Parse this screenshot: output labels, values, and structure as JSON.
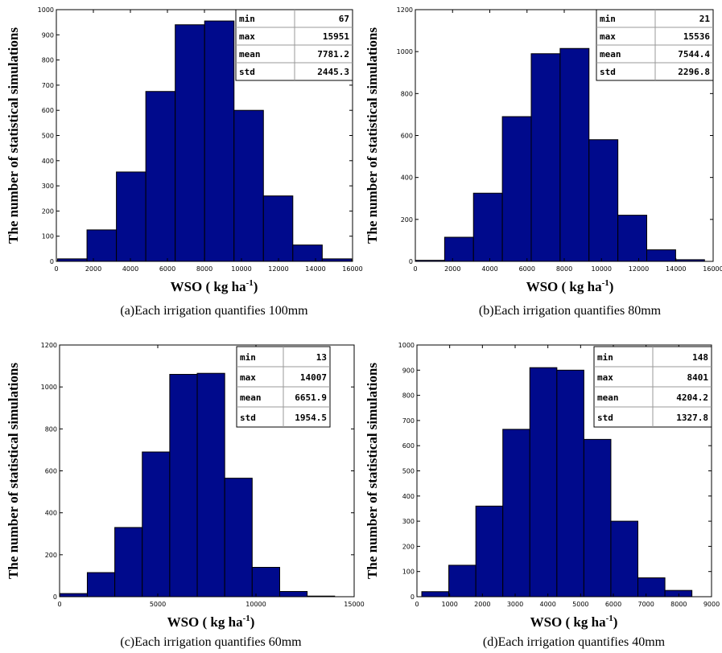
{
  "colors": {
    "bar": "#000a8c",
    "axis": "#000000"
  },
  "chart_data": [
    {
      "type": "bar",
      "caption": "(a)Each irrigation quantifies 100mm",
      "xlabel": "WSO ( kg ha",
      "xlabel_sup": "-1",
      "xlabel_end": ")",
      "ylabel": "The number of statistical simulations",
      "xlim": [
        0,
        16000
      ],
      "ylim": [
        0,
        1000
      ],
      "xticks": [
        0,
        2000,
        4000,
        6000,
        8000,
        10000,
        12000,
        14000,
        16000
      ],
      "yticks": [
        0,
        100,
        200,
        300,
        400,
        500,
        600,
        700,
        800,
        900,
        1000
      ],
      "bins": [
        {
          "x0": 67,
          "x1": 1655,
          "value": 10
        },
        {
          "x0": 1655,
          "x1": 3244,
          "value": 125
        },
        {
          "x0": 3244,
          "x1": 4832,
          "value": 355
        },
        {
          "x0": 4832,
          "x1": 6421,
          "value": 675
        },
        {
          "x0": 6421,
          "x1": 8009,
          "value": 940
        },
        {
          "x0": 8009,
          "x1": 9598,
          "value": 955
        },
        {
          "x0": 9598,
          "x1": 11186,
          "value": 600
        },
        {
          "x0": 11186,
          "x1": 12774,
          "value": 260
        },
        {
          "x0": 12774,
          "x1": 14363,
          "value": 65
        },
        {
          "x0": 14363,
          "x1": 15951,
          "value": 10
        }
      ],
      "stats": [
        [
          "min",
          "67"
        ],
        [
          "max",
          "15951"
        ],
        [
          "mean",
          "7781.2"
        ],
        [
          "std",
          "2445.3"
        ]
      ]
    },
    {
      "type": "bar",
      "caption": "(b)Each irrigation quantifies 80mm",
      "xlabel": "WSO ( kg ha",
      "xlabel_sup": "-1",
      "xlabel_end": ")",
      "ylabel": "The number of statistical simulations",
      "xlim": [
        0,
        16000
      ],
      "ylim": [
        0,
        1200
      ],
      "xticks": [
        0,
        2000,
        4000,
        6000,
        8000,
        10000,
        12000,
        14000,
        16000
      ],
      "yticks": [
        0,
        200,
        400,
        600,
        800,
        1000,
        1200
      ],
      "bins": [
        {
          "x0": 21,
          "x1": 1573,
          "value": 5
        },
        {
          "x0": 1573,
          "x1": 3124,
          "value": 115
        },
        {
          "x0": 3124,
          "x1": 4676,
          "value": 325
        },
        {
          "x0": 4676,
          "x1": 6227,
          "value": 690
        },
        {
          "x0": 6227,
          "x1": 7779,
          "value": 990
        },
        {
          "x0": 7779,
          "x1": 9330,
          "value": 1015
        },
        {
          "x0": 9330,
          "x1": 10882,
          "value": 580
        },
        {
          "x0": 10882,
          "x1": 12433,
          "value": 220
        },
        {
          "x0": 12433,
          "x1": 13985,
          "value": 55
        },
        {
          "x0": 13985,
          "x1": 15536,
          "value": 8
        }
      ],
      "stats": [
        [
          "min",
          "21"
        ],
        [
          "max",
          "15536"
        ],
        [
          "mean",
          "7544.4"
        ],
        [
          "std",
          "2296.8"
        ]
      ]
    },
    {
      "type": "bar",
      "caption": "(c)Each irrigation quantifies 60mm",
      "xlabel": "WSO ( kg ha",
      "xlabel_sup": "-1",
      "xlabel_end": ")",
      "ylabel": "The number of statistical simulations",
      "xlim": [
        0,
        15000
      ],
      "ylim": [
        0,
        1200
      ],
      "xticks": [
        0,
        5000,
        10000,
        15000
      ],
      "yticks": [
        0,
        200,
        400,
        600,
        800,
        1000,
        1200
      ],
      "bins": [
        {
          "x0": 13,
          "x1": 1412,
          "value": 15
        },
        {
          "x0": 1412,
          "x1": 2812,
          "value": 115
        },
        {
          "x0": 2812,
          "x1": 4211,
          "value": 330
        },
        {
          "x0": 4211,
          "x1": 5610,
          "value": 690
        },
        {
          "x0": 5610,
          "x1": 7010,
          "value": 1060
        },
        {
          "x0": 7010,
          "x1": 8409,
          "value": 1065
        },
        {
          "x0": 8409,
          "x1": 9808,
          "value": 565
        },
        {
          "x0": 9808,
          "x1": 11208,
          "value": 140
        },
        {
          "x0": 11208,
          "x1": 12607,
          "value": 25
        },
        {
          "x0": 12607,
          "x1": 14007,
          "value": 3
        }
      ],
      "stats": [
        [
          "min",
          "13"
        ],
        [
          "max",
          "14007"
        ],
        [
          "mean",
          "6651.9"
        ],
        [
          "std",
          "1954.5"
        ]
      ]
    },
    {
      "type": "bar",
      "caption": "(d)Each irrigation quantifies 40mm",
      "xlabel": "WSO ( kg ha",
      "xlabel_sup": "-1",
      "xlabel_end": ")",
      "ylabel": "The number of statistical simulations",
      "xlim": [
        0,
        9000
      ],
      "ylim": [
        0,
        1000
      ],
      "xticks": [
        0,
        1000,
        2000,
        3000,
        4000,
        5000,
        6000,
        7000,
        8000,
        9000
      ],
      "yticks": [
        0,
        100,
        200,
        300,
        400,
        500,
        600,
        700,
        800,
        900,
        1000
      ],
      "bins": [
        {
          "x0": 148,
          "x1": 973,
          "value": 20
        },
        {
          "x0": 973,
          "x1": 1799,
          "value": 125
        },
        {
          "x0": 1799,
          "x1": 2624,
          "value": 360
        },
        {
          "x0": 2624,
          "x1": 3449,
          "value": 665
        },
        {
          "x0": 3449,
          "x1": 4275,
          "value": 910
        },
        {
          "x0": 4275,
          "x1": 5100,
          "value": 900
        },
        {
          "x0": 5100,
          "x1": 5925,
          "value": 625
        },
        {
          "x0": 5925,
          "x1": 6750,
          "value": 300
        },
        {
          "x0": 6750,
          "x1": 7576,
          "value": 75
        },
        {
          "x0": 7576,
          "x1": 8401,
          "value": 25
        }
      ],
      "stats": [
        [
          "min",
          "148"
        ],
        [
          "max",
          "8401"
        ],
        [
          "mean",
          "4204.2"
        ],
        [
          "std",
          "1327.8"
        ]
      ]
    }
  ]
}
